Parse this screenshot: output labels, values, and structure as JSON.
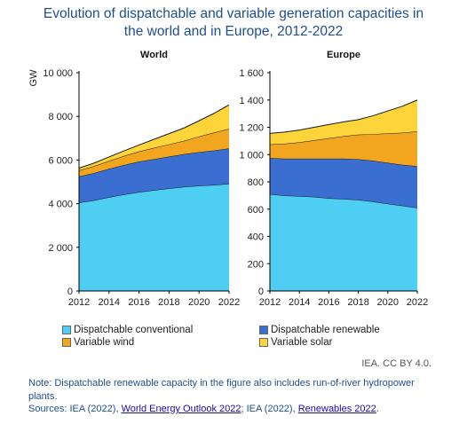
{
  "title_line1": "Evolution of dispatchable and variable generation capacities in",
  "title_line2": "the world and in Europe, 2012-2022",
  "credit": "IEA. CC BY 4.0.",
  "note_line": "Note: Dispatchable renewable capacity in the figure also includes run-of-river hydropower plants.",
  "sources_prefix": "Sources: IEA (2022), ",
  "sources_link1": "World Energy Outlook 2022",
  "sources_middle": "; IEA (2022), ",
  "sources_link2": "Renewables 2022",
  "sources_suffix": ".",
  "colors": {
    "dispatchable_conventional": "#4fcef4",
    "dispatchable_renewable": "#3a6fd1",
    "variable_wind": "#f2a51f",
    "variable_solar": "#fdd43a"
  },
  "chart_data": [
    {
      "type": "area",
      "stacked": true,
      "title": "World",
      "ylabel": "GW",
      "x": [
        2012,
        2013,
        2014,
        2015,
        2016,
        2017,
        2018,
        2019,
        2020,
        2021,
        2022
      ],
      "xticks": [
        "2012",
        "2014",
        "2016",
        "2018",
        "2020",
        "2022"
      ],
      "ylim": [
        0,
        10000
      ],
      "yticks": [
        "0",
        "2 000",
        "4 000",
        "6 000",
        "8 000",
        "10 000"
      ],
      "ytick_values": [
        0,
        2000,
        4000,
        6000,
        8000,
        10000
      ],
      "series": [
        {
          "name": "Dispatchable conventional",
          "key": "dispatchable_conventional",
          "values": [
            4050,
            4150,
            4300,
            4420,
            4530,
            4620,
            4700,
            4770,
            4820,
            4860,
            4910
          ]
        },
        {
          "name": "Dispatchable renewable",
          "key": "dispatchable_renewable",
          "values": [
            1200,
            1250,
            1300,
            1350,
            1400,
            1420,
            1460,
            1500,
            1540,
            1580,
            1620
          ]
        },
        {
          "name": "Variable wind",
          "key": "variable_wind",
          "values": [
            280,
            320,
            360,
            420,
            460,
            520,
            560,
            610,
            720,
            820,
            900
          ]
        },
        {
          "name": "Variable solar",
          "key": "variable_solar",
          "values": [
            100,
            140,
            180,
            230,
            300,
            390,
            490,
            590,
            720,
            880,
            1100
          ]
        }
      ]
    },
    {
      "type": "area",
      "stacked": true,
      "title": "Europe",
      "x": [
        2012,
        2013,
        2014,
        2015,
        2016,
        2017,
        2018,
        2019,
        2020,
        2021,
        2022
      ],
      "xticks": [
        "2012",
        "2014",
        "2016",
        "2018",
        "2020",
        "2022"
      ],
      "ylim": [
        0,
        1600
      ],
      "yticks": [
        "0",
        "200",
        "400",
        "600",
        "800",
        "1 000",
        "1 200",
        "1 400",
        "1 600"
      ],
      "ytick_values": [
        0,
        200,
        400,
        600,
        800,
        1000,
        1200,
        1400,
        1600
      ],
      "series": [
        {
          "name": "Dispatchable conventional",
          "key": "dispatchable_conventional",
          "values": [
            710,
            700,
            695,
            690,
            680,
            675,
            668,
            655,
            640,
            625,
            610
          ]
        },
        {
          "name": "Dispatchable renewable",
          "key": "dispatchable_renewable",
          "values": [
            265,
            270,
            275,
            280,
            290,
            295,
            298,
            300,
            300,
            300,
            305
          ]
        },
        {
          "name": "Variable wind",
          "key": "variable_wind",
          "values": [
            100,
            110,
            120,
            135,
            150,
            165,
            180,
            195,
            215,
            235,
            255
          ]
        },
        {
          "name": "Variable solar",
          "key": "variable_solar",
          "values": [
            80,
            85,
            90,
            95,
            100,
            105,
            110,
            135,
            165,
            195,
            230
          ]
        }
      ]
    }
  ]
}
